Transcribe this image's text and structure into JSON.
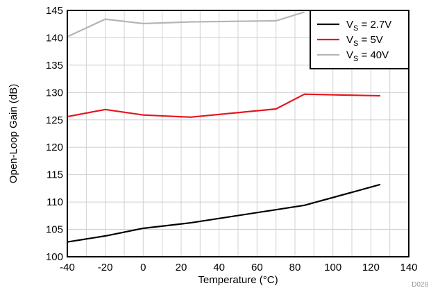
{
  "chart_data": {
    "type": "line",
    "xlabel": "Temperature (°C)",
    "ylabel": "Open-Loop Gain (dB)",
    "xlim": [
      -40,
      140
    ],
    "ylim": [
      100,
      145
    ],
    "x_ticks": [
      -40,
      -20,
      0,
      20,
      40,
      60,
      80,
      100,
      120,
      140
    ],
    "y_ticks": [
      100,
      105,
      110,
      115,
      120,
      125,
      130,
      135,
      140,
      145
    ],
    "x_minor_step": 10,
    "grid": true,
    "legend_position": "top-right",
    "figure_id": "D028",
    "series": [
      {
        "name": "VS = 2.7V",
        "label_main": "V",
        "label_sub": "S",
        "label_rest": " = 2.7V",
        "color": "#000000",
        "x": [
          -40,
          -20,
          0,
          25,
          70,
          85,
          125
        ],
        "y": [
          102.7,
          103.8,
          105.2,
          106.2,
          108.6,
          109.4,
          113.2
        ]
      },
      {
        "name": "VS = 5V",
        "label_main": "V",
        "label_sub": "S",
        "label_rest": " = 5V",
        "color": "#e8141c",
        "x": [
          -40,
          -20,
          0,
          25,
          70,
          85,
          125
        ],
        "y": [
          125.6,
          126.9,
          125.9,
          125.5,
          127.0,
          129.7,
          129.4
        ]
      },
      {
        "name": "VS = 40V",
        "label_main": "V",
        "label_sub": "S",
        "label_rest": " = 40V",
        "color": "#b4b4b4",
        "x": [
          -40,
          -20,
          0,
          25,
          70,
          85
        ],
        "y": [
          140.2,
          143.4,
          142.6,
          142.9,
          143.1,
          144.7
        ]
      }
    ]
  }
}
